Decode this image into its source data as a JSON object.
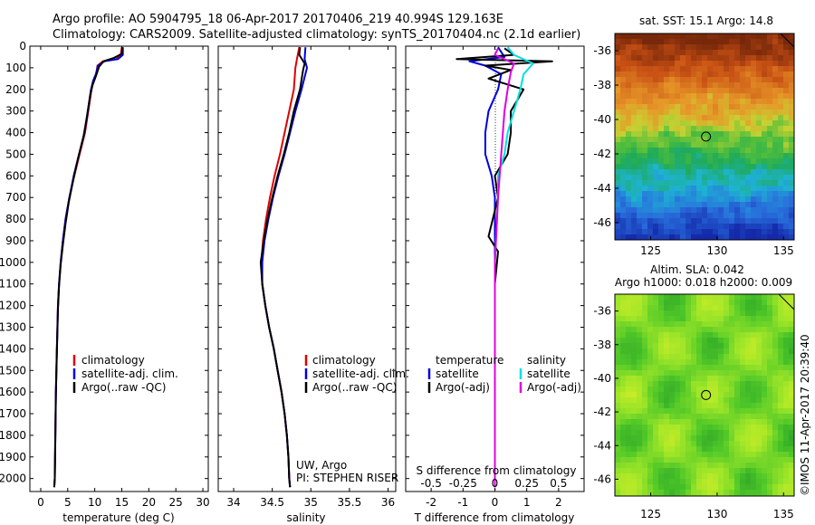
{
  "header": {
    "line1": "Argo profile: AO 5904795_18 06-Apr-2017 20170406_219 40.994S 129.163E",
    "line2": "Climatology: CARS2009. Satellite-adjusted climatology: synTS_20170404.nc (2.1d earlier)"
  },
  "colors": {
    "climatology": "#e00000",
    "satellite": "#0000e0",
    "argo": "#000000",
    "sat_salinity": "#00e0e0",
    "argo_salinity_adj": "#e000e0"
  },
  "chart_data": [
    {
      "type": "line",
      "panel": "temperature",
      "xlabel": "temperature (deg C)",
      "xlim": [
        -2,
        31
      ],
      "xticks": [
        0,
        5,
        10,
        15,
        20,
        25,
        30
      ],
      "ylim": [
        2060,
        0
      ],
      "yticks": [
        0,
        100,
        200,
        300,
        400,
        500,
        600,
        700,
        800,
        900,
        1000,
        1100,
        1200,
        1300,
        1400,
        1500,
        1600,
        1700,
        1800,
        1900,
        2000
      ],
      "legend": {
        "position": "middle",
        "entries": [
          "climatology",
          "satellite-adj. clim.",
          "Argo(..raw -QC)"
        ]
      },
      "series": [
        {
          "name": "climatology",
          "color": "#e00000",
          "points": [
            [
              15.0,
              5
            ],
            [
              14.8,
              40
            ],
            [
              14.0,
              60
            ],
            [
              11.5,
              70
            ],
            [
              10.5,
              90
            ],
            [
              10.3,
              130
            ],
            [
              9.8,
              160
            ],
            [
              9.4,
              200
            ],
            [
              8.8,
              300
            ],
            [
              8.2,
              400
            ],
            [
              7.2,
              500
            ],
            [
              6.2,
              600
            ],
            [
              5.3,
              700
            ],
            [
              4.6,
              800
            ],
            [
              4.1,
              900
            ],
            [
              3.7,
              1000
            ],
            [
              3.4,
              1100
            ],
            [
              3.2,
              1200
            ],
            [
              3.0,
              1400
            ],
            [
              2.8,
              1600
            ],
            [
              2.7,
              1800
            ],
            [
              2.6,
              2000
            ],
            [
              2.5,
              2040
            ]
          ]
        },
        {
          "name": "satellite-adj. clim.",
          "color": "#0000e0",
          "points": [
            [
              15.2,
              5
            ],
            [
              15.2,
              40
            ],
            [
              14.3,
              60
            ],
            [
              11.8,
              70
            ],
            [
              10.6,
              90
            ],
            [
              10.2,
              130
            ],
            [
              9.7,
              160
            ],
            [
              9.3,
              200
            ],
            [
              8.7,
              300
            ],
            [
              8.1,
              400
            ],
            [
              7.1,
              500
            ],
            [
              6.1,
              600
            ],
            [
              5.3,
              700
            ],
            [
              4.6,
              800
            ],
            [
              4.1,
              900
            ],
            [
              3.7,
              1000
            ],
            [
              3.4,
              1100
            ],
            [
              3.2,
              1200
            ],
            [
              3.0,
              1400
            ],
            [
              2.8,
              1600
            ],
            [
              2.7,
              1800
            ],
            [
              2.6,
              2000
            ],
            [
              2.5,
              2040
            ]
          ]
        },
        {
          "name": "Argo(..raw -QC)",
          "color": "#000000",
          "points": [
            [
              15.1,
              5
            ],
            [
              15.0,
              35
            ],
            [
              13.5,
              55
            ],
            [
              11.6,
              70
            ],
            [
              10.8,
              95
            ],
            [
              10.2,
              140
            ],
            [
              9.6,
              180
            ],
            [
              9.2,
              220
            ],
            [
              8.6,
              320
            ],
            [
              7.9,
              420
            ],
            [
              6.9,
              520
            ],
            [
              6.0,
              620
            ],
            [
              5.2,
              720
            ],
            [
              4.6,
              820
            ],
            [
              4.1,
              920
            ],
            [
              3.7,
              1010
            ],
            [
              3.4,
              1110
            ],
            [
              3.2,
              1220
            ],
            [
              3.0,
              1420
            ],
            [
              2.8,
              1620
            ],
            [
              2.7,
              1820
            ],
            [
              2.6,
              2000
            ],
            [
              2.5,
              2040
            ]
          ]
        }
      ]
    },
    {
      "type": "line",
      "panel": "salinity",
      "xlabel": "salinity",
      "xlim": [
        33.8,
        36.1
      ],
      "xticks": [
        34,
        34.5,
        35,
        35.5,
        36
      ],
      "ylim": [
        2060,
        0
      ],
      "legend": {
        "position": "middle",
        "entries": [
          "climatology",
          "satellite-adj. clim.",
          "Argo(..raw -QC)"
        ]
      },
      "annotations": [
        "UW, Argo",
        "PI: STEPHEN RISER"
      ],
      "series": [
        {
          "name": "climatology",
          "color": "#e00000",
          "points": [
            [
              34.85,
              5
            ],
            [
              34.82,
              60
            ],
            [
              34.8,
              100
            ],
            [
              34.78,
              200
            ],
            [
              34.72,
              300
            ],
            [
              34.66,
              400
            ],
            [
              34.6,
              500
            ],
            [
              34.53,
              600
            ],
            [
              34.47,
              700
            ],
            [
              34.42,
              800
            ],
            [
              34.38,
              900
            ],
            [
              34.36,
              1000
            ],
            [
              34.37,
              1100
            ],
            [
              34.41,
              1200
            ],
            [
              34.46,
              1300
            ],
            [
              34.52,
              1400
            ],
            [
              34.57,
              1500
            ],
            [
              34.62,
              1600
            ],
            [
              34.66,
              1700
            ],
            [
              34.69,
              1800
            ],
            [
              34.71,
              1900
            ],
            [
              34.72,
              2000
            ],
            [
              34.73,
              2040
            ]
          ]
        },
        {
          "name": "satellite-adj. clim.",
          "color": "#0000e0",
          "points": [
            [
              34.93,
              5
            ],
            [
              34.92,
              60
            ],
            [
              34.95,
              100
            ],
            [
              34.88,
              200
            ],
            [
              34.8,
              300
            ],
            [
              34.73,
              400
            ],
            [
              34.66,
              500
            ],
            [
              34.58,
              600
            ],
            [
              34.51,
              700
            ],
            [
              34.45,
              800
            ],
            [
              34.4,
              900
            ],
            [
              34.37,
              1000
            ],
            [
              34.37,
              1100
            ],
            [
              34.41,
              1200
            ],
            [
              34.46,
              1300
            ],
            [
              34.52,
              1400
            ],
            [
              34.57,
              1500
            ],
            [
              34.62,
              1600
            ],
            [
              34.66,
              1700
            ],
            [
              34.69,
              1800
            ],
            [
              34.71,
              1900
            ],
            [
              34.72,
              2000
            ],
            [
              34.73,
              2040
            ]
          ]
        },
        {
          "name": "Argo(..raw -QC)",
          "color": "#000000",
          "points": [
            [
              34.86,
              5
            ],
            [
              34.85,
              40
            ],
            [
              34.92,
              80
            ],
            [
              34.9,
              110
            ],
            [
              34.86,
              200
            ],
            [
              34.78,
              300
            ],
            [
              34.72,
              400
            ],
            [
              34.65,
              500
            ],
            [
              34.57,
              600
            ],
            [
              34.5,
              700
            ],
            [
              34.44,
              800
            ],
            [
              34.39,
              900
            ],
            [
              34.35,
              1000
            ],
            [
              34.37,
              1100
            ],
            [
              34.41,
              1200
            ],
            [
              34.46,
              1300
            ],
            [
              34.52,
              1400
            ],
            [
              34.57,
              1500
            ],
            [
              34.62,
              1600
            ],
            [
              34.66,
              1700
            ],
            [
              34.69,
              1800
            ],
            [
              34.71,
              1900
            ],
            [
              34.72,
              2000
            ],
            [
              34.73,
              2040
            ]
          ]
        }
      ]
    },
    {
      "type": "line",
      "panel": "difference",
      "xlabel": "T difference from climatology",
      "top_axis_label": "S difference from climatology",
      "xlim": [
        -2.8,
        2.8
      ],
      "xticks": [
        -2,
        -1,
        0,
        1,
        2
      ],
      "s_ticks": [
        -0.5,
        -0.25,
        0,
        0.25,
        0.5
      ],
      "legend": {
        "position": "middle",
        "entries": [
          "temperature",
          "satellite",
          "Argo(-adj)",
          "salinity",
          "satellite",
          "Argo(-adj)"
        ]
      },
      "series": [
        {
          "name": "satellite",
          "color": "#0000e0",
          "points": [
            [
              0.1,
              5
            ],
            [
              0.3,
              50
            ],
            [
              -0.8,
              70
            ],
            [
              -0.3,
              90
            ],
            [
              0.2,
              130
            ],
            [
              0.1,
              200
            ],
            [
              -0.2,
              300
            ],
            [
              -0.3,
              400
            ],
            [
              -0.3,
              500
            ],
            [
              -0.1,
              600
            ],
            [
              0.0,
              700
            ],
            [
              0.0,
              800
            ],
            [
              0.0,
              1000
            ],
            [
              0.0,
              1500
            ],
            [
              0.0,
              2040
            ]
          ]
        },
        {
          "name": "Argo(-adj)",
          "color": "#000000",
          "points": [
            [
              0.3,
              10
            ],
            [
              0.6,
              40
            ],
            [
              -1.2,
              60
            ],
            [
              1.8,
              70
            ],
            [
              -0.3,
              90
            ],
            [
              0.5,
              110
            ],
            [
              -0.2,
              150
            ],
            [
              0.9,
              200
            ],
            [
              0.5,
              300
            ],
            [
              0.5,
              400
            ],
            [
              0.4,
              500
            ],
            [
              0.0,
              600
            ],
            [
              0.1,
              700
            ],
            [
              -0.2,
              880
            ],
            [
              0.1,
              950
            ],
            [
              0.0,
              1100
            ],
            [
              0.0,
              1500
            ],
            [
              0.0,
              2040
            ]
          ]
        },
        {
          "name": "satellite",
          "color": "#00e0e0",
          "points": [
            [
              0.4,
              5
            ],
            [
              0.6,
              40
            ],
            [
              1.2,
              80
            ],
            [
              0.9,
              130
            ],
            [
              0.8,
              200
            ],
            [
              0.6,
              300
            ],
            [
              0.4,
              400
            ],
            [
              0.3,
              500
            ],
            [
              0.1,
              600
            ],
            [
              0.1,
              700
            ],
            [
              0.0,
              1000
            ],
            [
              0.0,
              2040
            ]
          ]
        },
        {
          "name": "Argo(-adj)",
          "color": "#e000e0",
          "points": [
            [
              0.1,
              10
            ],
            [
              0.0,
              40
            ],
            [
              0.6,
              80
            ],
            [
              0.5,
              120
            ],
            [
              0.4,
              200
            ],
            [
              0.3,
              300
            ],
            [
              0.2,
              500
            ],
            [
              0.1,
              700
            ],
            [
              0.0,
              1000
            ],
            [
              0.0,
              1500
            ],
            [
              0.0,
              2040
            ]
          ]
        }
      ]
    },
    {
      "type": "heatmap",
      "panel": "sst_map",
      "title": "sat. SST: 15.1  Argo: 14.8",
      "xticks": [
        125,
        130,
        135
      ],
      "yticks": [
        -36,
        -38,
        -40,
        -42,
        -44,
        -46
      ],
      "xlim": [
        122.3,
        135.8
      ],
      "ylim": [
        -47,
        -35
      ],
      "marker": {
        "lon": 129.163,
        "lat": -40.994
      }
    },
    {
      "type": "heatmap",
      "panel": "sla_map",
      "title_line1": "Altim. SLA: 0.042",
      "title_line2": "Argo h1000: 0.018 h2000: 0.009",
      "xticks": [
        125,
        130,
        135
      ],
      "yticks": [
        -36,
        -38,
        -40,
        -42,
        -44,
        -46
      ],
      "xlim": [
        122.3,
        135.8
      ],
      "ylim": [
        -47,
        -35
      ],
      "marker": {
        "lon": 129.163,
        "lat": -40.994
      }
    }
  ],
  "labels": {
    "legend_climatology": "climatology",
    "legend_satellite": "satellite-adj. clim.",
    "legend_argo": "Argo(..raw -QC)",
    "diff_temperature": "temperature",
    "diff_salinity": "salinity",
    "diff_satellite": "satellite",
    "diff_argo": "Argo(-adj)",
    "credit1": "UW, Argo",
    "credit2": "PI: STEPHEN RISER",
    "s_diff": "S difference from climatology",
    "t_diff": "T difference from climatology",
    "temp_xlabel": "temperature (deg C)",
    "sal_xlabel": "salinity",
    "watermark": "©IMOS 11-Apr-2017 20:39:40"
  }
}
